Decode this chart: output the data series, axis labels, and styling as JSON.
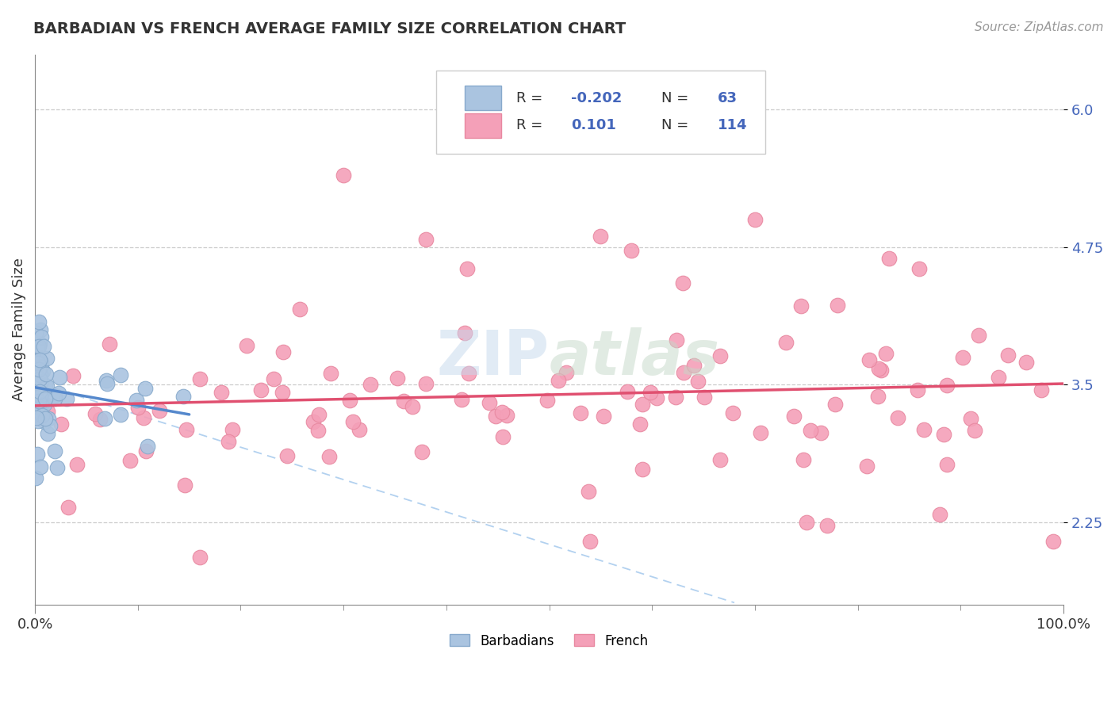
{
  "title": "BARBADIAN VS FRENCH AVERAGE FAMILY SIZE CORRELATION CHART",
  "source": "Source: ZipAtlas.com",
  "ylabel": "Average Family Size",
  "xlim": [
    0,
    1.0
  ],
  "ylim": [
    1.5,
    6.5
  ],
  "yticks": [
    2.25,
    3.5,
    4.75,
    6.0
  ],
  "xtick_labels": [
    "0.0%",
    "100.0%"
  ],
  "grid_color": "#cccccc",
  "background_color": "#ffffff",
  "barbadian_color": "#aac4e0",
  "french_color": "#f4a0b8",
  "barbadian_edge": "#88aacc",
  "french_edge": "#e888a0",
  "barbadian_line_color": "#5588cc",
  "french_line_color": "#e05070",
  "dashed_line_color": "#aaccee",
  "legend_R_barbadian": "-0.202",
  "legend_N_barbadian": "63",
  "legend_R_french": "0.101",
  "legend_N_french": "114",
  "tick_color": "#4466bb"
}
